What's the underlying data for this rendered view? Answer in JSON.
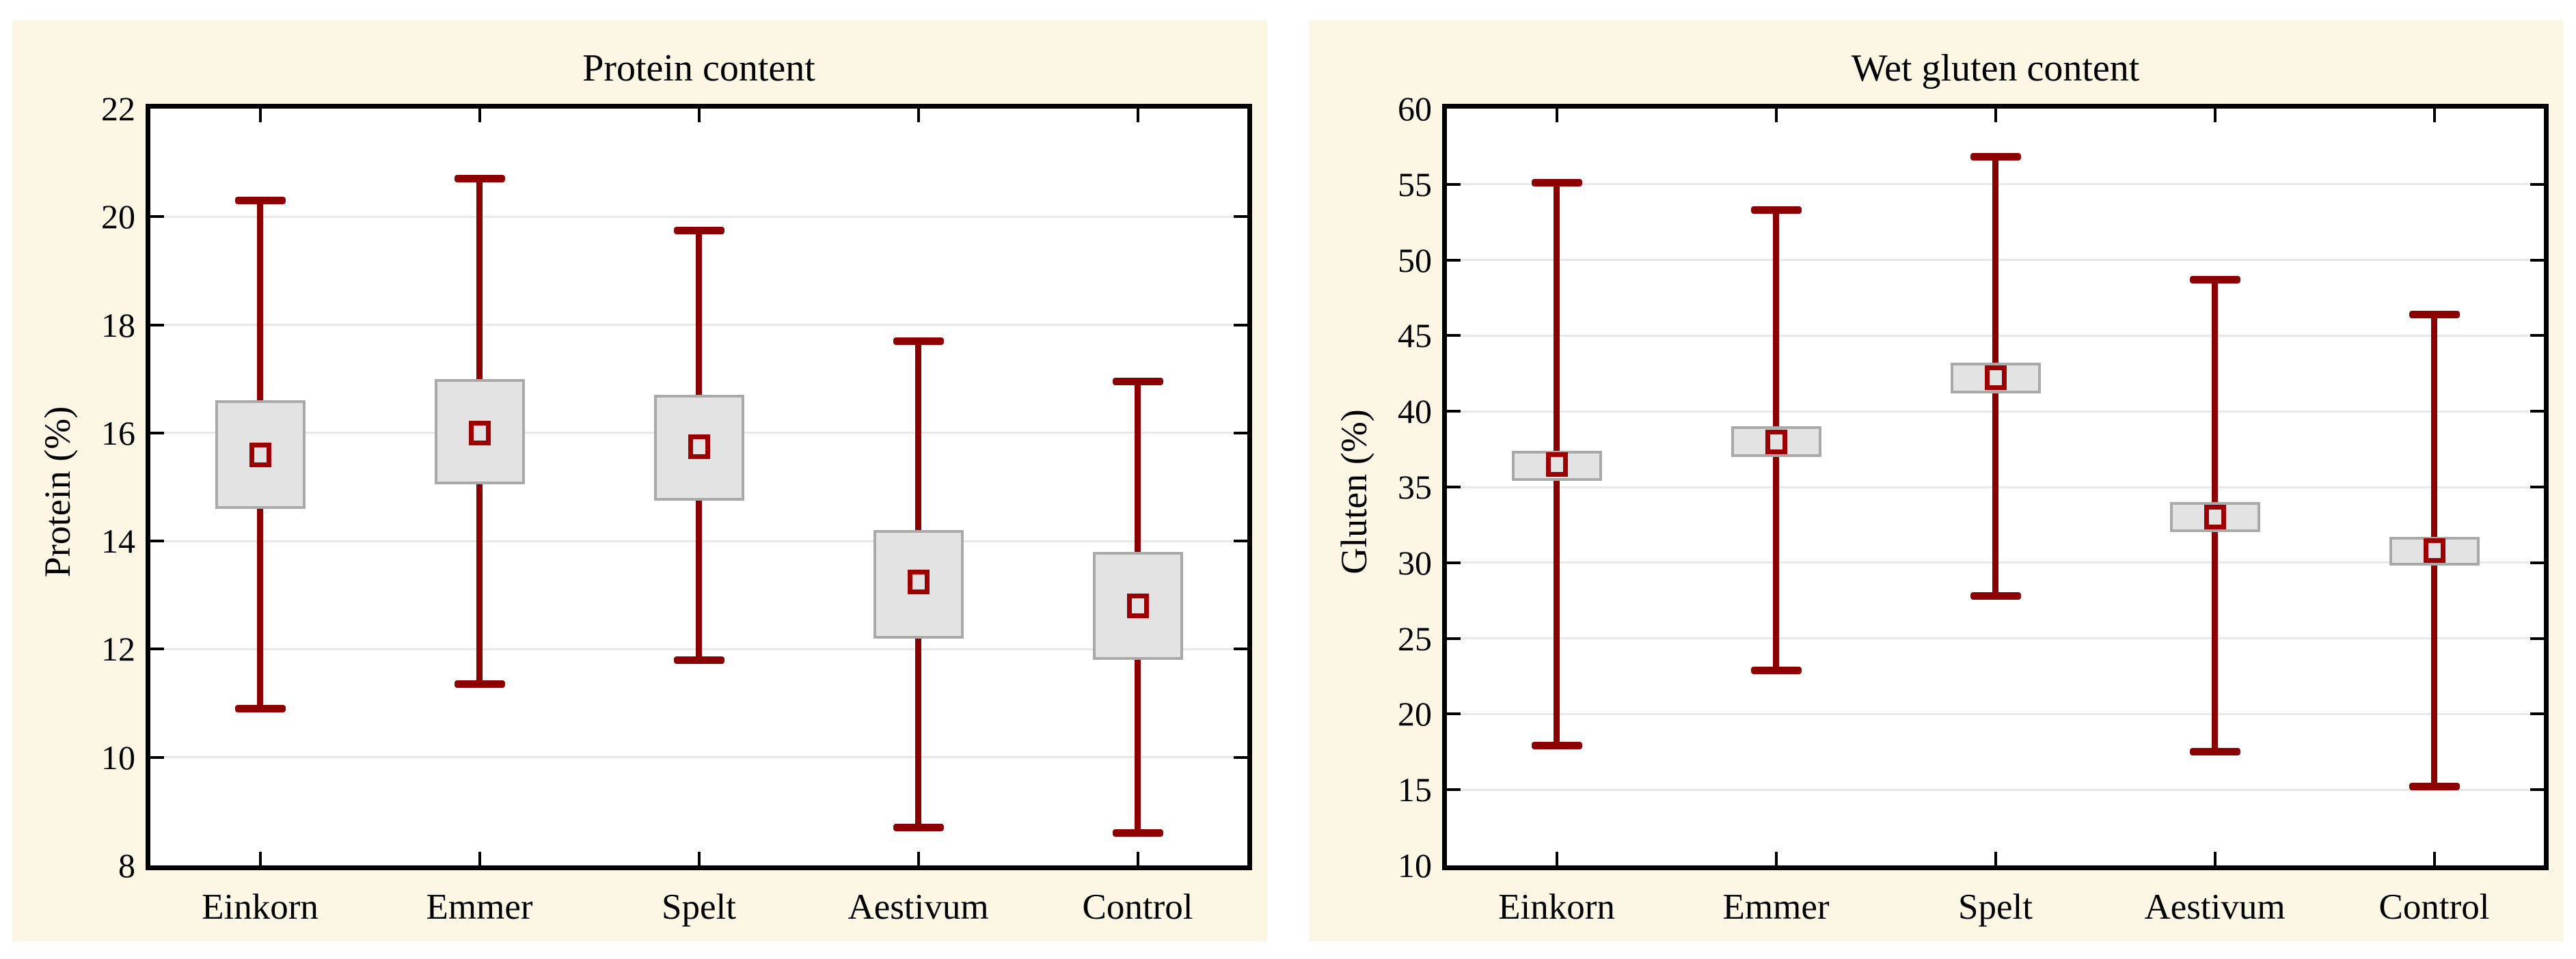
{
  "figure": {
    "background": "#FFFFFF",
    "panel_background": "#FCF6E5",
    "whisker_color": "#8B0000",
    "median_marker_border": "#9C0000",
    "box_fill": "#E3E3E3",
    "box_border": "#A9A9A9",
    "gridline_color": "#E8E8E8",
    "axis_color": "#000000"
  },
  "chart_data": [
    {
      "type": "box",
      "title": "Protein content",
      "ylabel": "Protein (%)",
      "xlabel": "",
      "ylim": [
        8,
        22
      ],
      "yticks": [
        8,
        10,
        12,
        14,
        16,
        18,
        20,
        22
      ],
      "grid": "horizontal",
      "legend": "none",
      "categories": [
        "Einkorn",
        "Emmer",
        "Spelt",
        "Aestivum",
        "Control"
      ],
      "boxes": [
        {
          "category": "Einkorn",
          "whisker_low": 10.9,
          "q1": 14.6,
          "median": 15.6,
          "q3": 16.6,
          "whisker_high": 20.3
        },
        {
          "category": "Emmer",
          "whisker_low": 11.35,
          "q1": 15.05,
          "median": 16.0,
          "q3": 17.0,
          "whisker_high": 20.7
        },
        {
          "category": "Spelt",
          "whisker_low": 11.8,
          "q1": 14.75,
          "median": 15.75,
          "q3": 16.7,
          "whisker_high": 19.75
        },
        {
          "category": "Aestivum",
          "whisker_low": 8.7,
          "q1": 12.2,
          "median": 13.25,
          "q3": 14.2,
          "whisker_high": 17.7
        },
        {
          "category": "Control",
          "whisker_low": 8.6,
          "q1": 11.8,
          "median": 12.8,
          "q3": 13.8,
          "whisker_high": 16.95
        }
      ]
    },
    {
      "type": "box",
      "title": "Wet gluten content",
      "ylabel": "Gluten (%)",
      "xlabel": "",
      "ylim": [
        10,
        60
      ],
      "yticks": [
        10,
        15,
        20,
        25,
        30,
        35,
        40,
        45,
        50,
        55,
        60
      ],
      "grid": "horizontal",
      "legend": "none",
      "categories": [
        "Einkorn",
        "Emmer",
        "Spelt",
        "Aestivum",
        "Control"
      ],
      "boxes": [
        {
          "category": "Einkorn",
          "whisker_low": 17.9,
          "q1": 35.4,
          "median": 36.5,
          "q3": 37.4,
          "whisker_high": 55.1
        },
        {
          "category": "Emmer",
          "whisker_low": 22.9,
          "q1": 37.0,
          "median": 38.0,
          "q3": 39.0,
          "whisker_high": 53.3
        },
        {
          "category": "Spelt",
          "whisker_low": 27.8,
          "q1": 41.2,
          "median": 42.2,
          "q3": 43.2,
          "whisker_high": 56.8
        },
        {
          "category": "Aestivum",
          "whisker_low": 17.5,
          "q1": 32.0,
          "median": 33.0,
          "q3": 34.0,
          "whisker_high": 48.7
        },
        {
          "category": "Control",
          "whisker_low": 15.2,
          "q1": 29.8,
          "median": 30.8,
          "q3": 31.7,
          "whisker_high": 46.4
        }
      ]
    }
  ]
}
